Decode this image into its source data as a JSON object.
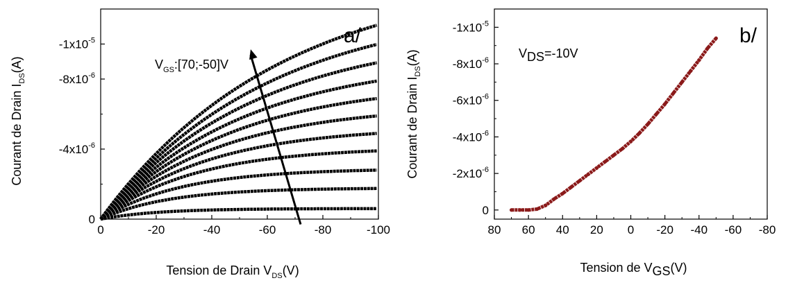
{
  "chart_data": [
    {
      "type": "line",
      "panel_label": "a/",
      "xlabel": {
        "main": "Tension de Drain V",
        "sub": "DS",
        "tail": "(V)"
      },
      "ylabel": {
        "main": "Courant de Drain I",
        "sub": "DS",
        "tail": "(A)"
      },
      "xlim": [
        0,
        -100
      ],
      "ylim": [
        0,
        -1.2e-05
      ],
      "x_ticks": [
        {
          "value": 0,
          "label": "0"
        },
        {
          "value": -20,
          "label": "-20"
        },
        {
          "value": -40,
          "label": "-40"
        },
        {
          "value": -60,
          "label": "-60"
        },
        {
          "value": -80,
          "label": "-80"
        },
        {
          "value": -100,
          "label": "-100"
        }
      ],
      "y_ticks": [
        {
          "value": 0,
          "label": "0"
        },
        {
          "value": -4e-06,
          "label": "-4x10",
          "exp": "-6"
        },
        {
          "value": -8e-06,
          "label": "-8x10",
          "exp": "-6"
        },
        {
          "value": -1e-05,
          "label": "-1x10",
          "exp": "-5"
        }
      ],
      "annotation": {
        "main": "V",
        "sub": "GS",
        "tail": ":[70;-50]V"
      },
      "arrow": {
        "from": [
          -72,
          3e-07
        ],
        "to": [
          -54,
          -9.7e-06
        ]
      },
      "x": [
        0,
        -5,
        -10,
        -15,
        -20,
        -25,
        -30,
        -35,
        -40,
        -45,
        -50,
        -55,
        -60,
        -65,
        -70,
        -75,
        -80,
        -85,
        -90,
        -95,
        -100
      ],
      "series_saturation_currents": [
        -6e-07,
        -1.8e-06,
        -2.9e-06,
        -4e-06,
        -5e-06,
        -6e-06,
        -6.9e-06,
        -8e-06,
        -9.1e-06,
        -1.02e-05,
        -1.25e-05
      ],
      "series_end_values": [
        -6e-07,
        -1.75e-06,
        -2.8e-06,
        -3.9e-06,
        -4.9e-06,
        -5.9e-06,
        -6.9e-06,
        -7.9e-06,
        -8.95e-06,
        -1e-05,
        -1.11e-05
      ],
      "color": "#000000"
    },
    {
      "type": "line",
      "panel_label": "b/",
      "xlabel": {
        "main": "Tension de V",
        "sub": "GS",
        "tail": "(V)"
      },
      "ylabel": {
        "main": "Courant de Drain  I",
        "sub": "DS",
        "tail": "(A)"
      },
      "xlim": [
        80,
        -80
      ],
      "ylim": [
        5e-07,
        -1.1e-05
      ],
      "x_ticks": [
        {
          "value": 80,
          "label": "80"
        },
        {
          "value": 60,
          "label": "60"
        },
        {
          "value": 40,
          "label": "40"
        },
        {
          "value": 20,
          "label": "20"
        },
        {
          "value": 0,
          "label": "0"
        },
        {
          "value": -20,
          "label": "-20"
        },
        {
          "value": -40,
          "label": "-40"
        },
        {
          "value": -60,
          "label": "-60"
        },
        {
          "value": -80,
          "label": "-80"
        }
      ],
      "y_ticks": [
        {
          "value": 0,
          "label": "0"
        },
        {
          "value": -2e-06,
          "label": "-2x10",
          "exp": "-6"
        },
        {
          "value": -4e-06,
          "label": "-4x10",
          "exp": "-6"
        },
        {
          "value": -6e-06,
          "label": "-6x10",
          "exp": "-6"
        },
        {
          "value": -8e-06,
          "label": "-8x10",
          "exp": "-6"
        },
        {
          "value": -1e-05,
          "label": "-1x10",
          "exp": "-5"
        }
      ],
      "annotation": {
        "main": "V",
        "sub": "DS",
        "tail": "=-10V"
      },
      "x": [
        70,
        65,
        60,
        55,
        50,
        45,
        40,
        35,
        30,
        25,
        20,
        15,
        10,
        5,
        0,
        -5,
        -10,
        -15,
        -20,
        -25,
        -30,
        -35,
        -40,
        -45,
        -50
      ],
      "y": [
        0,
        0,
        0,
        -5e-08,
        -2.5e-07,
        -6e-07,
        -9e-07,
        -1.25e-06,
        -1.6e-06,
        -1.95e-06,
        -2.3e-06,
        -2.65e-06,
        -3e-06,
        -3.35e-06,
        -3.75e-06,
        -4.2e-06,
        -4.7e-06,
        -5.25e-06,
        -5.8e-06,
        -6.4e-06,
        -7e-06,
        -7.6e-06,
        -8.2e-06,
        -8.85e-06,
        -9.4e-06
      ],
      "color": "#8b1a1a"
    }
  ]
}
